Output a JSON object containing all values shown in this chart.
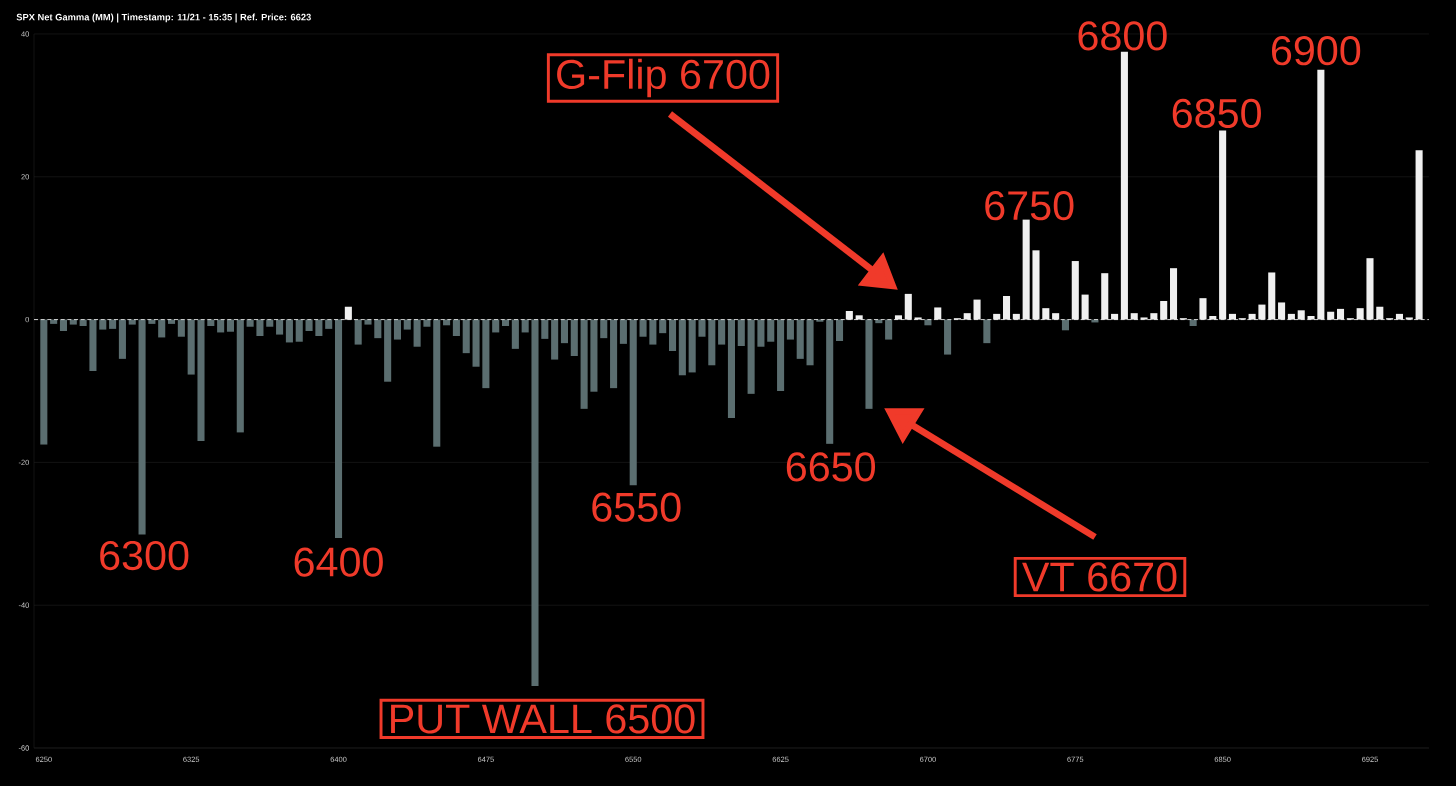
{
  "chart_data": {
    "type": "bar",
    "title": "SPX Net Gamma (MM) | Timestamp: 11/21 - 15:35  | Ref. Price: 6623",
    "x": [
      6250,
      6255,
      6260,
      6265,
      6270,
      6275,
      6280,
      6285,
      6290,
      6295,
      6300,
      6305,
      6310,
      6315,
      6320,
      6325,
      6330,
      6335,
      6340,
      6345,
      6350,
      6355,
      6360,
      6365,
      6370,
      6375,
      6380,
      6385,
      6390,
      6395,
      6400,
      6405,
      6410,
      6415,
      6420,
      6425,
      6430,
      6435,
      6440,
      6445,
      6450,
      6455,
      6460,
      6465,
      6470,
      6475,
      6480,
      6485,
      6490,
      6495,
      6500,
      6505,
      6510,
      6515,
      6520,
      6525,
      6530,
      6535,
      6540,
      6545,
      6550,
      6555,
      6560,
      6565,
      6570,
      6575,
      6580,
      6585,
      6590,
      6595,
      6600,
      6605,
      6610,
      6615,
      6620,
      6625,
      6630,
      6635,
      6640,
      6645,
      6650,
      6655,
      6660,
      6665,
      6670,
      6675,
      6680,
      6685,
      6690,
      6695,
      6700,
      6705,
      6710,
      6715,
      6720,
      6725,
      6730,
      6735,
      6740,
      6745,
      6750,
      6755,
      6760,
      6765,
      6770,
      6775,
      6780,
      6785,
      6790,
      6795,
      6800,
      6805,
      6810,
      6815,
      6820,
      6825,
      6830,
      6835,
      6840,
      6845,
      6850,
      6855,
      6860,
      6865,
      6870,
      6875,
      6880,
      6885,
      6890,
      6895,
      6900,
      6905,
      6910,
      6915,
      6920,
      6925,
      6930,
      6935,
      6940,
      6945,
      6950
    ],
    "values": [
      -17.5,
      -0.6,
      -1.6,
      -0.7,
      -0.9,
      -7.2,
      -1.4,
      -1.3,
      -5.5,
      -0.7,
      -30.1,
      -0.6,
      -2.5,
      -0.6,
      -2.4,
      -7.7,
      -17.0,
      -0.9,
      -1.8,
      -1.7,
      -15.8,
      -1.0,
      -2.3,
      -1.0,
      -2.1,
      -3.2,
      -3.1,
      -1.6,
      -2.3,
      -1.3,
      -30.6,
      1.8,
      -3.5,
      -0.7,
      -2.6,
      -8.7,
      -2.8,
      -1.4,
      -3.8,
      -1.0,
      -17.8,
      -0.8,
      -2.3,
      -4.7,
      -6.6,
      -9.6,
      -1.8,
      -0.9,
      -4.1,
      -1.8,
      -51.3,
      -2.7,
      -5.6,
      -3.3,
      -5.1,
      -12.5,
      -10.1,
      -2.6,
      -9.6,
      -3.4,
      -23.2,
      -2.4,
      -3.5,
      -1.9,
      -4.4,
      -7.8,
      -7.4,
      -2.4,
      -6.4,
      -3.5,
      -13.8,
      -3.7,
      -10.4,
      -3.8,
      -3.1,
      -10.0,
      -2.8,
      -5.5,
      -6.4,
      -0.3,
      -17.4,
      -3.0,
      1.2,
      0.6,
      -12.5,
      -0.5,
      -2.8,
      0.6,
      3.6,
      0.3,
      -0.8,
      1.7,
      -4.9,
      0.2,
      0.9,
      2.8,
      -3.3,
      0.8,
      3.3,
      0.8,
      14.0,
      9.7,
      1.6,
      0.9,
      -1.5,
      8.2,
      3.5,
      -0.4,
      6.5,
      0.8,
      37.5,
      0.9,
      0.3,
      0.9,
      2.6,
      7.2,
      0.2,
      -0.9,
      3.0,
      0.5,
      26.5,
      0.8,
      0.2,
      0.8,
      2.1,
      6.6,
      2.4,
      0.8,
      1.3,
      0.5,
      35.0,
      1.1,
      1.5,
      0.2,
      1.6,
      8.6,
      1.8,
      0.2,
      0.8,
      0.3,
      23.7
    ],
    "colors": [
      "#5b6e70",
      "#5b6e70",
      "#5b6e70",
      "#5b6e70",
      "#5b6e70",
      "#5b6e70",
      "#5b6e70",
      "#5b6e70",
      "#5b6e70",
      "#5b6e70",
      "#5b6e70",
      "#5b6e70",
      "#5b6e70",
      "#5b6e70",
      "#5b6e70",
      "#5b6e70",
      "#5b6e70",
      "#5b6e70",
      "#5b6e70",
      "#5b6e70",
      "#5b6e70",
      "#5b6e70",
      "#5b6e70",
      "#5b6e70",
      "#5b6e70",
      "#5b6e70",
      "#5b6e70",
      "#5b6e70",
      "#5b6e70",
      "#5b6e70",
      "#5b6e70",
      "#f0f0f0",
      "#5b6e70",
      "#5b6e70",
      "#5b6e70",
      "#5b6e70",
      "#5b6e70",
      "#5b6e70",
      "#5b6e70",
      "#5b6e70",
      "#5b6e70",
      "#5b6e70",
      "#5b6e70",
      "#5b6e70",
      "#5b6e70",
      "#5b6e70",
      "#5b6e70",
      "#5b6e70",
      "#5b6e70",
      "#5b6e70",
      "#5b6e70",
      "#5b6e70",
      "#5b6e70",
      "#5b6e70",
      "#5b6e70",
      "#5b6e70",
      "#5b6e70",
      "#5b6e70",
      "#5b6e70",
      "#5b6e70",
      "#5b6e70",
      "#5b6e70",
      "#5b6e70",
      "#5b6e70",
      "#5b6e70",
      "#5b6e70",
      "#5b6e70",
      "#5b6e70",
      "#5b6e70",
      "#5b6e70",
      "#5b6e70",
      "#5b6e70",
      "#5b6e70",
      "#5b6e70",
      "#5b6e70",
      "#5b6e70",
      "#5b6e70",
      "#5b6e70",
      "#5b6e70",
      "#5b6e70",
      "#5b6e70",
      "#5b6e70",
      "#f0f0f0",
      "#f0f0f0",
      "#5b6e70",
      "#5b6e70",
      "#5b6e70",
      "#f0f0f0",
      "#f0f0f0",
      "#f0f0f0",
      "#5b6e70",
      "#f0f0f0",
      "#5b6e70",
      "#f0f0f0",
      "#f0f0f0",
      "#f0f0f0",
      "#5b6e70",
      "#f0f0f0",
      "#f0f0f0",
      "#f0f0f0",
      "#f0f0f0",
      "#f0f0f0",
      "#f0f0f0",
      "#f0f0f0",
      "#5b6e70",
      "#f0f0f0",
      "#f0f0f0",
      "#5b6e70",
      "#f0f0f0",
      "#f0f0f0",
      "#f0f0f0",
      "#f0f0f0",
      "#f0f0f0",
      "#f0f0f0",
      "#f0f0f0",
      "#f0f0f0",
      "#f0f0f0",
      "#5b6e70",
      "#f0f0f0",
      "#f0f0f0",
      "#f0f0f0",
      "#f0f0f0",
      "#f0f0f0",
      "#f0f0f0",
      "#f0f0f0",
      "#f0f0f0",
      "#f0f0f0",
      "#f0f0f0",
      "#f0f0f0",
      "#f0f0f0",
      "#f0f0f0",
      "#f0f0f0",
      "#f0f0f0",
      "#f0f0f0",
      "#f0f0f0",
      "#f0f0f0",
      "#f0f0f0",
      "#f0f0f0",
      "#f0f0f0",
      "#f0f0f0",
      "#f0f0f0"
    ],
    "xlim": [
      6245,
      6955
    ],
    "xticks": [
      6250,
      6325,
      6400,
      6475,
      6550,
      6625,
      6700,
      6775,
      6850,
      6925
    ],
    "ylim": [
      -60,
      40
    ],
    "yticks": [
      -60,
      -40,
      -20,
      0,
      20,
      40
    ],
    "grid": "y",
    "ref_lines": [
      {
        "axis": "y",
        "value": 0,
        "color": "#ffffff",
        "line_style": "dashed"
      }
    ],
    "annotations": [
      {
        "text": "6300",
        "x": 6300,
        "y": -30.1
      },
      {
        "text": "6400",
        "x": 6400,
        "y": -30.6
      },
      {
        "text": "PUT WALL 6500",
        "x": 6500,
        "y": -51.3
      },
      {
        "text": "6550",
        "x": 6550,
        "y": -23.2
      },
      {
        "text": "6650",
        "x": 6650,
        "y": -17.4
      },
      "VT 6670",
      "G-Flip 6700",
      {
        "text": "6750",
        "x": 6750,
        "y": 14.0
      },
      {
        "text": "6800",
        "x": 6800,
        "y": 37.5
      },
      {
        "text": "6850",
        "x": 6850,
        "y": 26.5
      },
      {
        "text": "6900",
        "x": 6900,
        "y": 35.0
      }
    ]
  }
}
